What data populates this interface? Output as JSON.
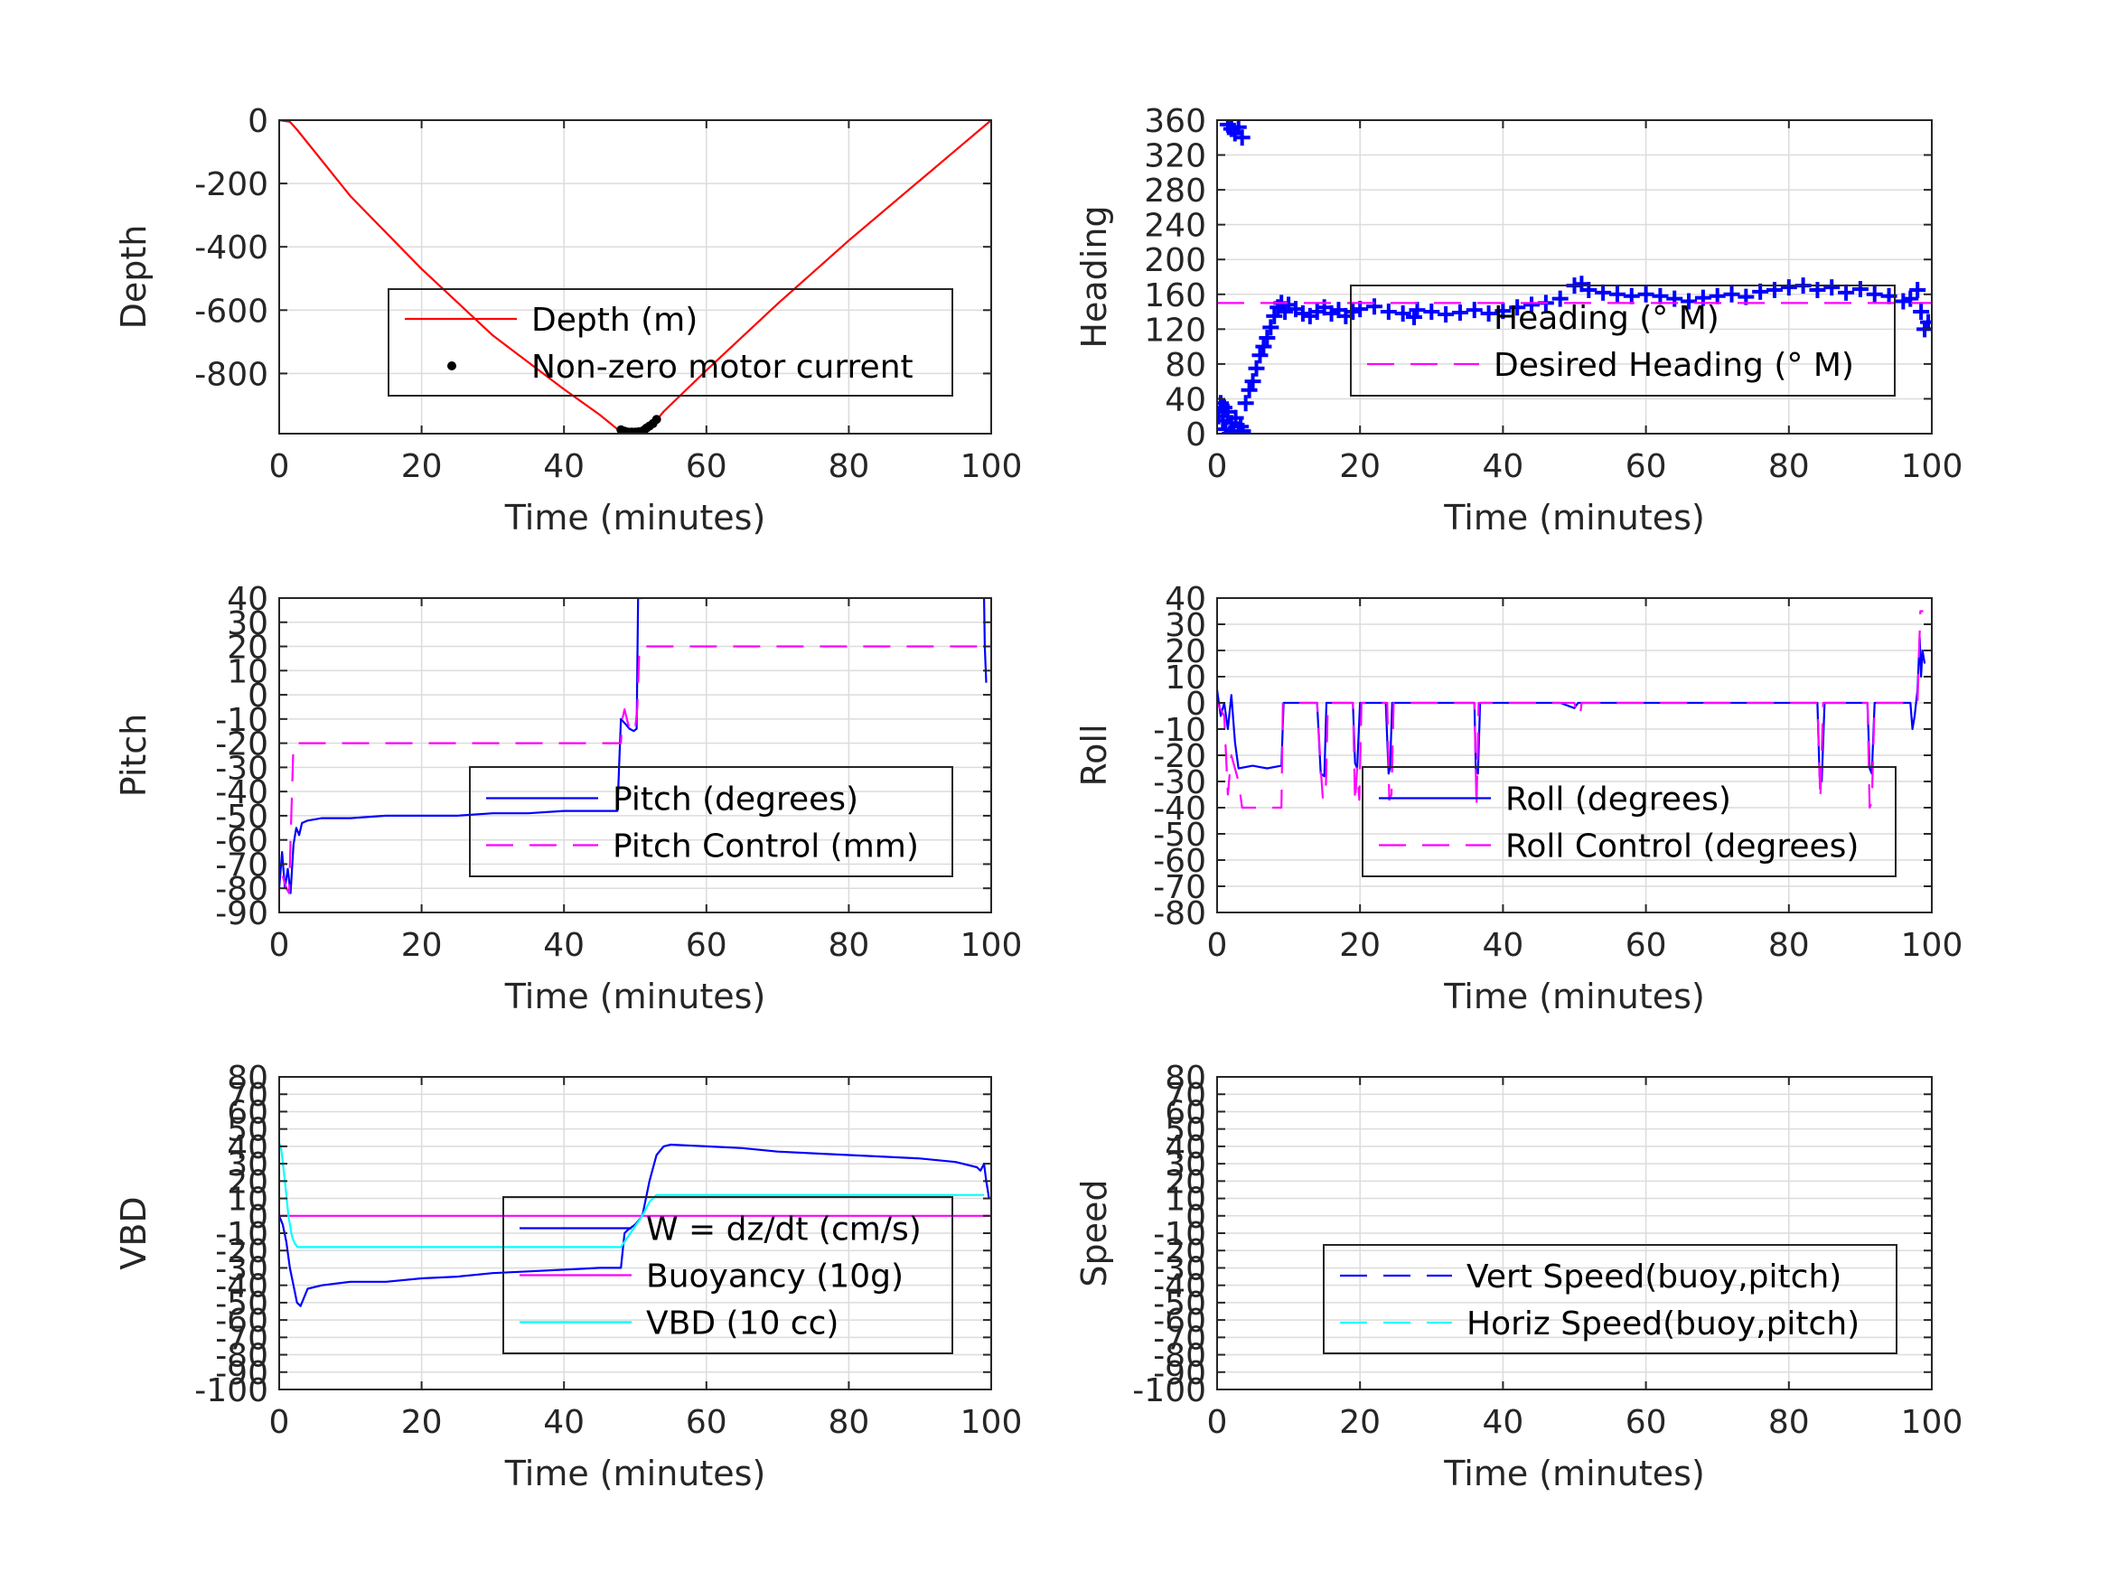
{
  "figure": {
    "colors": {
      "depth": "#ff0000",
      "motor": "#000000",
      "heading": "#0000ff",
      "desired": "#ff00ff",
      "pitch": "#0000ff",
      "pitch_control": "#ff00ff",
      "roll": "#0000ff",
      "roll_control": "#ff00ff",
      "w": "#0000ff",
      "buoyancy": "#ff00ff",
      "vbd": "#00ffff",
      "vert": "#0000ff",
      "horiz": "#00ffff"
    }
  },
  "chart_data": [
    {
      "id": "depth",
      "type": "line",
      "xlabel": "Time (minutes)",
      "ylabel": "Depth",
      "xlim": [
        0,
        100
      ],
      "ylim": [
        -990,
        0
      ],
      "xticks": [
        0,
        20,
        40,
        60,
        80,
        100
      ],
      "yticks": [
        0,
        -200,
        -400,
        -600,
        -800
      ],
      "ytick_labels": [
        "0",
        "-200",
        "-400",
        "-600",
        "-800"
      ],
      "grid": true,
      "legend": {
        "placement": "lower-center",
        "entries": [
          "Depth (m)",
          "Non-zero motor current"
        ]
      },
      "series": [
        {
          "name": "Depth (m)",
          "style": "solid",
          "color_key": "depth",
          "x": [
            0,
            1.5,
            2.5,
            10,
            20,
            30,
            40,
            45,
            48,
            50,
            52,
            54,
            60,
            70,
            80,
            90,
            95,
            100
          ],
          "y": [
            0,
            -5,
            -30,
            -240,
            -470,
            -680,
            -850,
            -930,
            -985,
            -985,
            -975,
            -920,
            -790,
            -580,
            -380,
            -190,
            -95,
            0
          ]
        },
        {
          "name": "Non-zero motor current",
          "style": "markers",
          "marker": "dot",
          "color_key": "motor",
          "x": [
            48,
            48.5,
            49,
            49.5,
            50,
            50.5,
            51,
            51.3,
            51.6,
            52,
            52.5,
            53
          ],
          "y": [
            -978,
            -982,
            -985,
            -985,
            -985,
            -984,
            -982,
            -978,
            -972,
            -966,
            -958,
            -945
          ]
        }
      ]
    },
    {
      "id": "heading",
      "type": "scatter",
      "xlabel": "Time (minutes)",
      "ylabel": "Heading",
      "xlim": [
        0,
        100
      ],
      "ylim": [
        0,
        360
      ],
      "xticks": [
        0,
        20,
        40,
        60,
        80,
        100
      ],
      "yticks": [
        0,
        40,
        80,
        120,
        160,
        200,
        240,
        280,
        320,
        360
      ],
      "ytick_labels": [
        "0",
        "40",
        "80",
        "120",
        "160",
        "200",
        "240",
        "280",
        "320",
        "360"
      ],
      "grid": true,
      "legend": {
        "placement": "center-right",
        "entries": [
          "Heading (° M)",
          "Desired Heading (° M)"
        ]
      },
      "series": [
        {
          "name": "Heading (° M)",
          "style": "markers",
          "marker": "plus",
          "color_key": "heading",
          "x": [
            0.2,
            0.5,
            0.8,
            1,
            1.2,
            1.5,
            1.8,
            2,
            2.3,
            2.6,
            3,
            3.3,
            3.6,
            1.5,
            2,
            2.5,
            3,
            3.5,
            4,
            4.5,
            5,
            5.5,
            6,
            6.5,
            7,
            7.5,
            8,
            8.5,
            9,
            9.5,
            10,
            11,
            12,
            13,
            14,
            15,
            16,
            17,
            18,
            19,
            20,
            22,
            24,
            26,
            28,
            30,
            32,
            34,
            36,
            38,
            40,
            42,
            44,
            46,
            48,
            50,
            51,
            52,
            54,
            56,
            58,
            60,
            62,
            64,
            66,
            68,
            70,
            72,
            74,
            76,
            78,
            80,
            82,
            84,
            86,
            88,
            90,
            92,
            94,
            96,
            97,
            98,
            98.5,
            99,
            99.5
          ],
          "y": [
            20,
            35,
            15,
            30,
            5,
            25,
            0,
            12,
            2,
            18,
            0,
            8,
            3,
            355,
            350,
            345,
            352,
            340,
            35,
            50,
            60,
            75,
            90,
            100,
            110,
            122,
            135,
            145,
            150,
            140,
            148,
            143,
            138,
            135,
            140,
            145,
            138,
            142,
            135,
            140,
            143,
            146,
            140,
            138,
            142,
            140,
            137,
            139,
            142,
            138,
            141,
            145,
            148,
            150,
            155,
            170,
            172,
            165,
            162,
            160,
            158,
            160,
            158,
            155,
            152,
            156,
            158,
            160,
            157,
            163,
            165,
            168,
            170,
            165,
            168,
            162,
            166,
            160,
            158,
            152,
            155,
            165,
            140,
            120,
            128
          ]
        },
        {
          "name": "Desired Heading (° M)",
          "style": "dashed",
          "color_key": "desired",
          "x": [
            0,
            100
          ],
          "y": [
            150,
            150
          ]
        }
      ]
    },
    {
      "id": "pitch",
      "type": "line",
      "xlabel": "Time (minutes)",
      "ylabel": "Pitch",
      "xlim": [
        0,
        100
      ],
      "ylim": [
        -90,
        40
      ],
      "xticks": [
        0,
        20,
        40,
        60,
        80,
        100
      ],
      "yticks": [
        40,
        30,
        20,
        10,
        0,
        -10,
        -20,
        -30,
        -40,
        -50,
        -60,
        -70,
        -80,
        -90
      ],
      "ytick_labels": [
        "40",
        "30",
        "20",
        "10",
        "0",
        "-10",
        "-20",
        "-30",
        "-40",
        "-50",
        "-60",
        "-70",
        "-80",
        "-90"
      ],
      "grid": true,
      "legend": {
        "placement": "lower-right",
        "entries": [
          "Pitch (degrees)",
          "Pitch Control (mm)"
        ]
      },
      "series": [
        {
          "name": "Pitch (degrees)",
          "style": "solid",
          "color_key": "pitch",
          "x": [
            0,
            0.4,
            0.8,
            1.2,
            1.6,
            2,
            2.4,
            2.8,
            3.2,
            4,
            6,
            10,
            15,
            20,
            25,
            30,
            35,
            40,
            45,
            47.5,
            48,
            48.6,
            49.2,
            49.8,
            50.2,
            50.4,
            50.6,
            51
          ],
          "y": [
            -80,
            -65,
            -80,
            -72,
            -82,
            -62,
            -55,
            -58,
            -53,
            -52,
            -51,
            -51,
            -50,
            -50,
            -50,
            -49,
            -49,
            -48,
            -48,
            -48,
            -10,
            -12,
            -14,
            -15,
            -14,
            40,
            40,
            40
          ]
        },
        {
          "name": "Pitch (degrees)",
          "style": "solid",
          "color_key": "pitch",
          "x": [
            99,
            99.1,
            99.3
          ],
          "y": [
            40,
            20,
            5
          ]
        },
        {
          "name": "Pitch Control (mm)",
          "style": "dashed",
          "color_key": "pitch_control",
          "x": [
            0.5,
            1,
            1.4,
            1.6,
            1.8,
            2,
            48,
            48.2,
            48.5,
            49,
            49.5,
            50,
            50.3,
            50.6,
            99
          ],
          "y": [
            -75,
            -80,
            -82,
            -60,
            -40,
            -20,
            -20,
            -10,
            -6,
            -12,
            -16,
            -14,
            -5,
            20,
            20
          ]
        }
      ]
    },
    {
      "id": "roll",
      "type": "line",
      "xlabel": "Time (minutes)",
      "ylabel": "Roll",
      "xlim": [
        0,
        100
      ],
      "ylim": [
        -80,
        40
      ],
      "xticks": [
        0,
        20,
        40,
        60,
        80,
        100
      ],
      "yticks": [
        40,
        30,
        20,
        10,
        0,
        -10,
        -20,
        -30,
        -40,
        -50,
        -60,
        -70,
        -80
      ],
      "ytick_labels": [
        "40",
        "30",
        "20",
        "10",
        "0",
        "-10",
        "-20",
        "-30",
        "-40",
        "-50",
        "-60",
        "-70",
        "-80"
      ],
      "grid": true,
      "legend": {
        "placement": "lower-right",
        "entries": [
          "Roll (degrees)",
          "Roll Control (degrees)"
        ]
      },
      "series": [
        {
          "name": "Roll (degrees)",
          "style": "solid",
          "color_key": "roll",
          "x": [
            0,
            0.5,
            1,
            1.5,
            2,
            2.5,
            3,
            5,
            7,
            9,
            9.3,
            10,
            14,
            14.5,
            15,
            15.3,
            15.6,
            19,
            19.3,
            19.6,
            20,
            23.6,
            24,
            24.2,
            24.5,
            36,
            36.2,
            36.5,
            36.8,
            48,
            50,
            50.5,
            55,
            84,
            84.3,
            84.6,
            85,
            91,
            91.3,
            91.6,
            92,
            97,
            97.3,
            97.6,
            98,
            98.3,
            98.5,
            98.7,
            99
          ],
          "y": [
            5,
            -5,
            0,
            -10,
            3,
            -15,
            -25,
            -24,
            -25,
            -24,
            0,
            0,
            0,
            -27,
            -28,
            0,
            0,
            0,
            -23,
            -25,
            0,
            0,
            -27,
            -25,
            0,
            0,
            -25,
            -27,
            0,
            0,
            -2,
            0,
            0,
            0,
            -28,
            -30,
            0,
            0,
            -25,
            -27,
            0,
            0,
            -10,
            -5,
            5,
            25,
            10,
            20,
            15
          ]
        },
        {
          "name": "Roll Control (degrees)",
          "style": "dashed",
          "color_key": "roll_control",
          "x": [
            0,
            1,
            1.5,
            2,
            3,
            3.5,
            6,
            9,
            9.2,
            9.5,
            14,
            14.5,
            14.8,
            15.2,
            15.5,
            19,
            19.3,
            19.6,
            19.9,
            20.2,
            23.8,
            24.1,
            24.4,
            24.7,
            36,
            36.3,
            36.6,
            50,
            50.4,
            50.8,
            51,
            55,
            84,
            84.4,
            84.8,
            91,
            91.3,
            91.6,
            92,
            98,
            98.4,
            98.8
          ],
          "y": [
            0,
            -5,
            -35,
            -20,
            -30,
            -40,
            -40,
            -40,
            0,
            0,
            0,
            -25,
            -37,
            -35,
            0,
            0,
            -38,
            -25,
            -37,
            0,
            0,
            -37,
            -35,
            0,
            0,
            -40,
            0,
            0,
            -5,
            -5,
            0,
            0,
            0,
            -37,
            0,
            0,
            -40,
            -38,
            0,
            0,
            35,
            35
          ]
        }
      ]
    },
    {
      "id": "vbd",
      "type": "line",
      "xlabel": "Time (minutes)",
      "ylabel": "VBD",
      "xlim": [
        0,
        100
      ],
      "ylim": [
        -100,
        80
      ],
      "xticks": [
        0,
        20,
        40,
        60,
        80,
        100
      ],
      "yticks": [
        80,
        70,
        60,
        50,
        40,
        30,
        20,
        10,
        0,
        -10,
        -20,
        -30,
        -40,
        -50,
        -60,
        -70,
        -80,
        -90,
        -100
      ],
      "ytick_labels": [
        "80",
        "70",
        "60",
        "50",
        "40",
        "30",
        "20",
        "10",
        "0",
        "-10",
        "-20",
        "-30",
        "-40",
        "-50",
        "-60",
        "-70",
        "-80",
        "-90",
        "-100"
      ],
      "grid": true,
      "legend": {
        "placement": "lower-right",
        "entries": [
          "W = dz/dt (cm/s)",
          "Buoyancy (10g)",
          "VBD (10 cc)"
        ]
      },
      "series": [
        {
          "name": "W = dz/dt (cm/s)",
          "style": "solid",
          "color_key": "w",
          "x": [
            0,
            0.5,
            1,
            1.5,
            2,
            2.5,
            3,
            4,
            6,
            10,
            15,
            20,
            25,
            30,
            35,
            40,
            45,
            48,
            48.5,
            49,
            50,
            51,
            52,
            53,
            54,
            55,
            60,
            65,
            70,
            75,
            80,
            85,
            90,
            95,
            98,
            98.5,
            99,
            99.3,
            99.5,
            99.7
          ],
          "y": [
            0,
            -5,
            -15,
            -30,
            -40,
            -50,
            -52,
            -42,
            -40,
            -38,
            -38,
            -36,
            -35,
            -33,
            -32,
            -31,
            -30,
            -30,
            -10,
            -8,
            -5,
            0,
            20,
            35,
            40,
            41,
            40,
            39,
            37,
            36,
            35,
            34,
            33,
            31,
            28,
            26,
            30,
            20,
            15,
            10
          ]
        },
        {
          "name": "Buoyancy (10g)",
          "style": "solid",
          "color_key": "buoyancy",
          "x": [
            0,
            100
          ],
          "y": [
            0,
            0
          ]
        },
        {
          "name": "VBD (10 cc)",
          "style": "solid",
          "color_key": "vbd",
          "x": [
            0,
            0.3,
            0.8,
            1.3,
            1.8,
            2.2,
            2.6,
            3,
            48,
            49,
            50,
            51,
            52,
            53,
            54,
            99
          ],
          "y": [
            42,
            38,
            20,
            0,
            -12,
            -16,
            -18,
            -18,
            -18,
            -12,
            -6,
            0,
            8,
            12,
            12,
            12
          ]
        }
      ]
    },
    {
      "id": "speed",
      "type": "line",
      "xlabel": "Time (minutes)",
      "ylabel": "Speed",
      "xlim": [
        0,
        100
      ],
      "ylim": [
        -100,
        80
      ],
      "xticks": [
        0,
        20,
        40,
        60,
        80,
        100
      ],
      "yticks": [
        80,
        70,
        60,
        50,
        40,
        30,
        20,
        10,
        0,
        -10,
        -20,
        -30,
        -40,
        -50,
        -60,
        -70,
        -80,
        -90,
        -100
      ],
      "ytick_labels": [
        "80",
        "70",
        "60",
        "50",
        "40",
        "30",
        "20",
        "10",
        "0",
        "-10",
        "-20",
        "-30",
        "-40",
        "-50",
        "-60",
        "-70",
        "-80",
        "-90",
        "-100"
      ],
      "grid": true,
      "legend": {
        "placement": "lower-right",
        "entries": [
          "Vert Speed(buoy,pitch)",
          "Horiz Speed(buoy,pitch)"
        ]
      },
      "series": [
        {
          "name": "Vert Speed(buoy,pitch)",
          "style": "dashed",
          "color_key": "vert",
          "x": [],
          "y": []
        },
        {
          "name": "Horiz Speed(buoy,pitch)",
          "style": "dashed",
          "color_key": "horiz",
          "x": [],
          "y": []
        }
      ]
    }
  ]
}
